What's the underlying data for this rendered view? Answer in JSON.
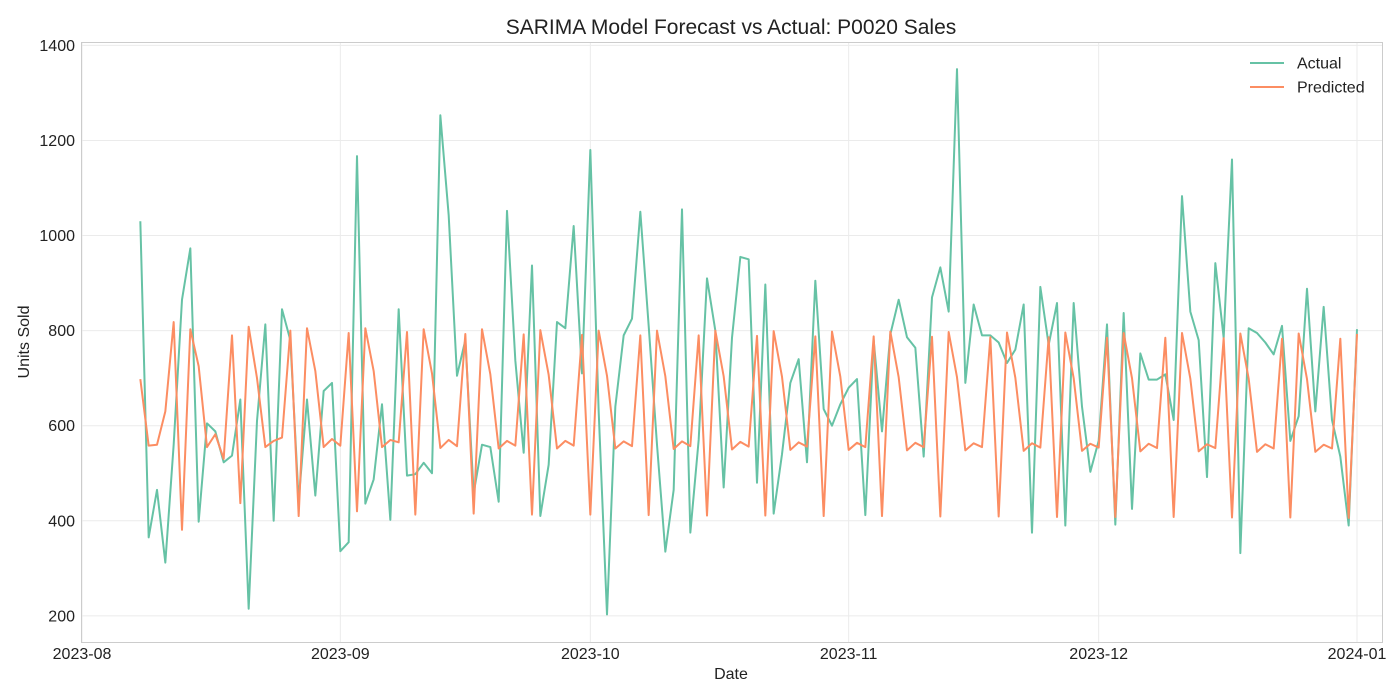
{
  "chart_data": {
    "type": "line",
    "title": "SARIMA Model Forecast vs Actual: P0020 Sales",
    "xlabel": "Date",
    "ylabel": "Units Sold",
    "xlim": [
      "2023-08-01",
      "2024-01-04"
    ],
    "ylim": [
      145,
      1405
    ],
    "x_ticks": [
      "2023-08-01",
      "2023-09-01",
      "2023-10-01",
      "2023-11-01",
      "2023-12-01",
      "2024-01-01"
    ],
    "x_tick_labels": [
      "2023-08",
      "2023-09",
      "2023-10",
      "2023-11",
      "2023-12",
      "2024-01"
    ],
    "y_ticks": [
      200,
      400,
      600,
      800,
      1000,
      1200,
      1400
    ],
    "y_tick_labels": [
      "200",
      "400",
      "600",
      "800",
      "1000",
      "1200",
      "1400"
    ],
    "grid": true,
    "legend_position": "top-right",
    "x_start": "2023-08-08",
    "x_end": "2024-01-01",
    "series": [
      {
        "name": "Actual",
        "color": "#66c2a5",
        "values": [
          1030,
          365,
          465,
          312,
          560,
          865,
          973,
          398,
          605,
          588,
          523,
          537,
          655,
          215,
          610,
          813,
          400,
          845,
          780,
          442,
          655,
          453,
          673,
          690,
          336,
          355,
          1167,
          436,
          487,
          645,
          402,
          845,
          495,
          498,
          522,
          500,
          1253,
          1043,
          705,
          780,
          458,
          560,
          555,
          440,
          1052,
          737,
          543,
          937,
          410,
          518,
          818,
          805,
          1020,
          710,
          1180,
          630,
          203,
          640,
          790,
          825,
          1050,
          810,
          560,
          335,
          465,
          1055,
          375,
          570,
          910,
          800,
          470,
          785,
          955,
          950,
          480,
          897,
          415,
          540,
          690,
          740,
          523,
          905,
          635,
          600,
          645,
          680,
          698,
          412,
          780,
          588,
          792,
          865,
          786,
          764,
          535,
          870,
          933,
          840,
          1350,
          690,
          855,
          790,
          790,
          775,
          732,
          760,
          855,
          375,
          892,
          770,
          858,
          390,
          858,
          640,
          503,
          568,
          813,
          392,
          837,
          425,
          752,
          697,
          697,
          708,
          612,
          1083,
          840,
          780,
          492,
          942,
          785,
          1160,
          332,
          805,
          795,
          775,
          750,
          810,
          568,
          620,
          888,
          630,
          850,
          612,
          535,
          390,
          803
        ]
      },
      {
        "name": "Predicted",
        "color": "#fc8d62",
        "values": [
          698,
          558,
          560,
          630,
          818,
          381,
          803,
          725,
          555,
          582,
          530,
          790,
          437,
          808,
          700,
          555,
          568,
          575,
          800,
          410,
          805,
          715,
          555,
          572,
          558,
          795,
          420,
          805,
          715,
          555,
          570,
          565,
          797,
          413,
          803,
          710,
          553,
          570,
          557,
          793,
          415,
          803,
          708,
          552,
          568,
          558,
          792,
          413,
          801,
          707,
          552,
          568,
          558,
          791,
          413,
          800,
          705,
          552,
          567,
          557,
          790,
          412,
          800,
          704,
          551,
          567,
          557,
          790,
          411,
          800,
          704,
          550,
          566,
          556,
          789,
          411,
          799,
          703,
          549,
          565,
          556,
          788,
          410,
          798,
          703,
          549,
          564,
          555,
          788,
          410,
          798,
          702,
          548,
          564,
          555,
          787,
          409,
          797,
          702,
          548,
          563,
          555,
          786,
          409,
          796,
          701,
          547,
          563,
          554,
          786,
          408,
          796,
          700,
          547,
          562,
          554,
          785,
          408,
          795,
          700,
          546,
          562,
          553,
          785,
          408,
          795,
          699,
          546,
          561,
          553,
          784,
          407,
          794,
          699,
          545,
          561,
          552,
          783,
          407,
          794,
          698,
          545,
          560,
          552,
          783,
          406,
          793
        ]
      }
    ]
  }
}
